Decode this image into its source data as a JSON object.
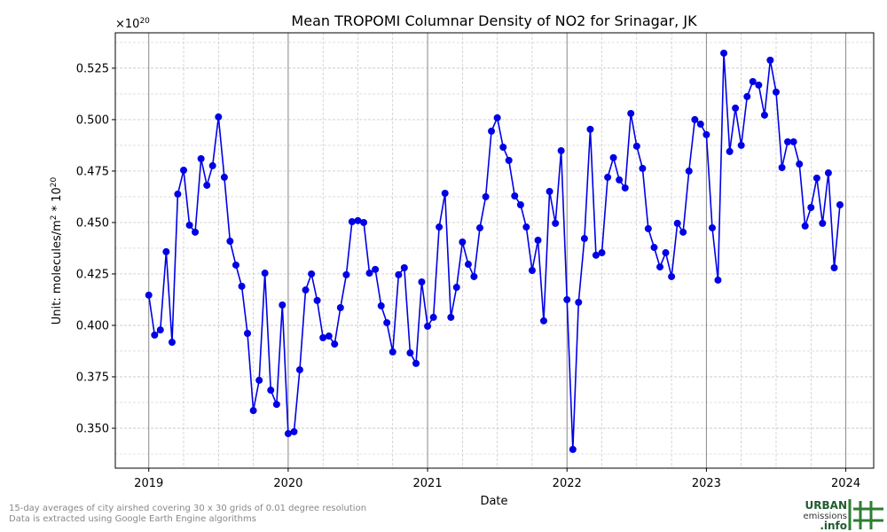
{
  "chart_data": {
    "type": "line",
    "title": "Mean TROPOMI Columnar Density of NO2 for Srinagar, JK",
    "xlabel": "Date",
    "ylabel": [
      {
        "text": "Unit: molecules/m"
      },
      {
        "text": "2",
        "sup": true
      },
      {
        "text": " * 10"
      },
      {
        "text": "20",
        "sup": true
      }
    ],
    "y_multiplier": [
      {
        "text": "×10"
      },
      {
        "text": "20",
        "sup": true
      }
    ],
    "footnotes": [
      "15-day averages of city airshed covering 30 x 30 grids of 0.01 degree resolution",
      "Data is extracted using Google Earth Engine algorithms"
    ],
    "logo": [
      "URBAN",
      "emissions",
      ".info"
    ],
    "xlim": [
      2018.76,
      2024.2
    ],
    "xticks": [
      2019,
      2020,
      2021,
      2022,
      2023,
      2024
    ],
    "x_minor_ticks": [
      2019.25,
      2019.5,
      2019.75,
      2020.25,
      2020.5,
      2020.75,
      2021.25,
      2021.5,
      2021.75,
      2022.25,
      2022.5,
      2022.75,
      2023.25,
      2023.5,
      2023.75
    ],
    "ylim": [
      0.3306,
      0.5422
    ],
    "yticks": [
      {
        "value": 0.35,
        "label": "0.350"
      },
      0.375,
      {
        "value": 0.4,
        "label": "0.400"
      },
      0.425,
      {
        "value": 0.45,
        "label": "0.450"
      },
      0.475,
      {
        "value": 0.5,
        "label": "0.500"
      },
      0.525
    ],
    "y_minor_ticks": [
      0.3375,
      0.3625,
      0.3875,
      0.4125,
      0.4375,
      0.4625,
      0.4875,
      0.5125,
      0.5375
    ],
    "grid": true,
    "x": [
      2019,
      2019.042,
      2019.083,
      2019.125,
      2019.167,
      2019.208,
      2019.25,
      2019.292,
      2019.333,
      2019.375,
      2019.417,
      2019.458,
      2019.5,
      2019.542,
      2019.583,
      2019.625,
      2019.667,
      2019.708,
      2019.75,
      2019.792,
      2019.833,
      2019.875,
      2019.917,
      2019.958,
      2020,
      2020.042,
      2020.083,
      2020.125,
      2020.167,
      2020.208,
      2020.25,
      2020.292,
      2020.333,
      2020.375,
      2020.417,
      2020.458,
      2020.5,
      2020.542,
      2020.583,
      2020.625,
      2020.667,
      2020.708,
      2020.75,
      2020.792,
      2020.833,
      2020.875,
      2020.917,
      2020.958,
      2021,
      2021.042,
      2021.083,
      2021.125,
      2021.167,
      2021.208,
      2021.25,
      2021.292,
      2021.333,
      2021.375,
      2021.417,
      2021.458,
      2021.5,
      2021.542,
      2021.583,
      2021.625,
      2021.667,
      2021.708,
      2021.75,
      2021.792,
      2021.833,
      2021.875,
      2021.917,
      2021.958,
      2022,
      2022.042,
      2022.083,
      2022.125,
      2022.167,
      2022.208,
      2022.25,
      2022.292,
      2022.333,
      2022.375,
      2022.417,
      2022.458,
      2022.5,
      2022.542,
      2022.583,
      2022.625,
      2022.667,
      2022.708,
      2022.75,
      2022.792,
      2022.833,
      2022.875,
      2022.917,
      2022.958,
      2023,
      2023.042,
      2023.083,
      2023.125,
      2023.167,
      2023.208,
      2023.25,
      2023.292,
      2023.333,
      2023.375,
      2023.417,
      2023.458,
      2023.5,
      2023.542,
      2023.583,
      2023.625,
      2023.667,
      2023.708,
      2023.75,
      2023.792,
      2023.833,
      2023.875,
      2023.917,
      2023.958
    ],
    "series": [
      {
        "color": "#0000e6",
        "values": [
          0.4147,
          0.3953,
          0.3978,
          0.4358,
          0.3918,
          0.4638,
          0.4754,
          0.4487,
          0.4453,
          0.481,
          0.4681,
          0.4776,
          0.5013,
          0.472,
          0.4409,
          0.4293,
          0.419,
          0.3961,
          0.3586,
          0.3733,
          0.4254,
          0.3685,
          0.3616,
          0.4099,
          0.3474,
          0.3483,
          0.3784,
          0.4172,
          0.425,
          0.4121,
          0.394,
          0.3948,
          0.3909,
          0.4086,
          0.4246,
          0.4504,
          0.4509,
          0.45,
          0.4254,
          0.4272,
          0.4095,
          0.4013,
          0.3871,
          0.4246,
          0.428,
          0.3866,
          0.3815,
          0.4211,
          0.3996,
          0.4039,
          0.4478,
          0.4642,
          0.4039,
          0.4185,
          0.4405,
          0.4297,
          0.4237,
          0.4474,
          0.4625,
          0.4944,
          0.5009,
          0.4866,
          0.4802,
          0.4629,
          0.4586,
          0.4478,
          0.4267,
          0.4414,
          0.4022,
          0.4651,
          0.4496,
          0.4849,
          0.4125,
          0.3397,
          0.4112,
          0.4422,
          0.4953,
          0.4341,
          0.4353,
          0.472,
          0.4815,
          0.4707,
          0.4668,
          0.503,
          0.4871,
          0.4763,
          0.447,
          0.4379,
          0.4284,
          0.4353,
          0.4237,
          0.4496,
          0.4453,
          0.475,
          0.5,
          0.4978,
          0.4927,
          0.4474,
          0.422,
          0.5323,
          0.4845,
          0.5056,
          0.4875,
          0.5112,
          0.5185,
          0.5168,
          0.5022,
          0.5289,
          0.5134,
          0.4767,
          0.4892,
          0.4892,
          0.4784,
          0.4483,
          0.4573,
          0.4716,
          0.4496,
          0.4741,
          0.428,
          0.4586
        ]
      }
    ]
  }
}
